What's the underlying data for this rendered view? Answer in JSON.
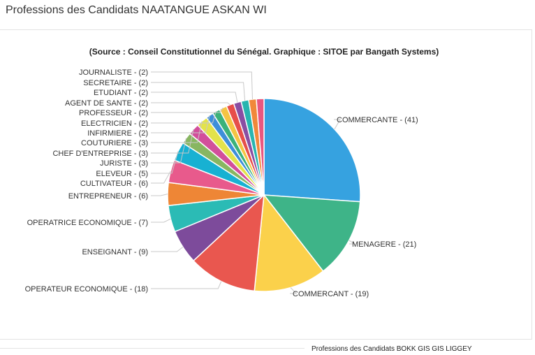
{
  "header": {
    "title": "Professions des Candidats NAATANGUE ASKAN WI"
  },
  "footer": {
    "next_title": "Professions des Candidats BOKK GIS GIS LIGGEY"
  },
  "chart_data": {
    "type": "pie",
    "subtitle": "(Source : Conseil Constitutionnel du Sénégal. Graphique : SITOE par Bangath Systems)",
    "slices": [
      {
        "label": "COMMERCANTE - (41)",
        "value": 41,
        "color": "#36a2e0"
      },
      {
        "label": "MENAGERE - (21)",
        "value": 21,
        "color": "#3eb488"
      },
      {
        "label": "COMMERCANT - (19)",
        "value": 19,
        "color": "#fbd14b"
      },
      {
        "label": "OPERATEUR ECONOMIQUE - (18)",
        "value": 18,
        "color": "#e9574f"
      },
      {
        "label": "ENSEIGNANT - (9)",
        "value": 9,
        "color": "#7d4b9b"
      },
      {
        "label": "OPERATRICE ECONOMIQUE - (7)",
        "value": 7,
        "color": "#2bbbb5"
      },
      {
        "label": "ENTREPRENEUR - (6)",
        "value": 6,
        "color": "#ee8636"
      },
      {
        "label": "CULTIVATEUR - (6)",
        "value": 6,
        "color": "#e85a8c"
      },
      {
        "label": "ELEVEUR - (5)",
        "value": 5,
        "color": "#18b1d2"
      },
      {
        "label": "JURISTE - (3)",
        "value": 3,
        "color": "#88b661"
      },
      {
        "label": "CHEF D'ENTREPRISE - (3)",
        "value": 3,
        "color": "#d24f9b"
      },
      {
        "label": "COUTURIERE - (3)",
        "value": 3,
        "color": "#e3e34b"
      },
      {
        "label": "INFIRMIERE - (2)",
        "value": 2,
        "color": "#3d8fd9"
      },
      {
        "label": "ELECTRICIEN - (2)",
        "value": 2,
        "color": "#3bb27a"
      },
      {
        "label": "PROFESSEUR - (2)",
        "value": 2,
        "color": "#f5c443"
      },
      {
        "label": "AGENT DE SANTE - (2)",
        "value": 2,
        "color": "#e74e4a"
      },
      {
        "label": "ETUDIANT - (2)",
        "value": 2,
        "color": "#8a4ea3"
      },
      {
        "label": "SECRETAIRE - (2)",
        "value": 2,
        "color": "#28b5b0"
      },
      {
        "label": "JOURNALISTE - (2)",
        "value": 2,
        "color": "#f1883a"
      },
      {
        "label": "",
        "value": 2,
        "color": "#e9577f"
      }
    ]
  }
}
